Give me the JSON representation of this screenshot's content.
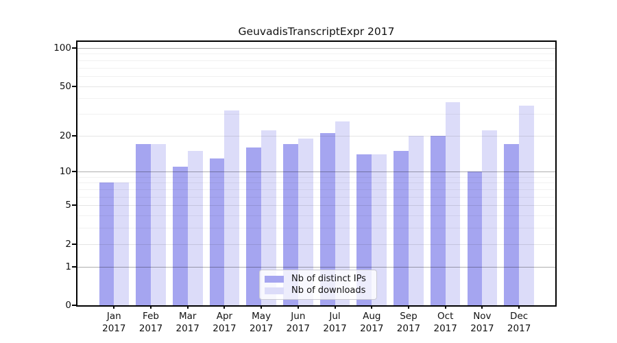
{
  "chart_data": {
    "type": "bar",
    "title": "GeuvadisTranscriptExpr 2017",
    "categories": [
      "Jan 2017",
      "Feb 2017",
      "Mar 2017",
      "Apr 2017",
      "May 2017",
      "Jun 2017",
      "Jul 2017",
      "Aug 2017",
      "Sep 2017",
      "Oct 2017",
      "Nov 2017",
      "Dec 2017"
    ],
    "series": [
      {
        "name": "Nb of distinct IPs",
        "color": "#a5a5f0",
        "values": [
          8,
          17,
          11,
          13,
          16,
          17,
          21,
          14,
          15,
          20,
          10,
          17
        ]
      },
      {
        "name": "Nb of downloads",
        "color": "#dcdcf9",
        "values": [
          8,
          17,
          15,
          32,
          22,
          19,
          26,
          14,
          20,
          37,
          22,
          35
        ]
      }
    ],
    "yscale": "log1p",
    "ylim": [
      0,
      112
    ],
    "yticks": [
      0,
      1,
      2,
      5,
      10,
      20,
      50,
      100
    ],
    "ytick_emphasis": [
      1,
      10,
      100
    ],
    "minor_gridlines": [
      3,
      4,
      6,
      7,
      8,
      9,
      30,
      40,
      60,
      70,
      80,
      90
    ],
    "grid": true,
    "legend_position": "lower center"
  }
}
